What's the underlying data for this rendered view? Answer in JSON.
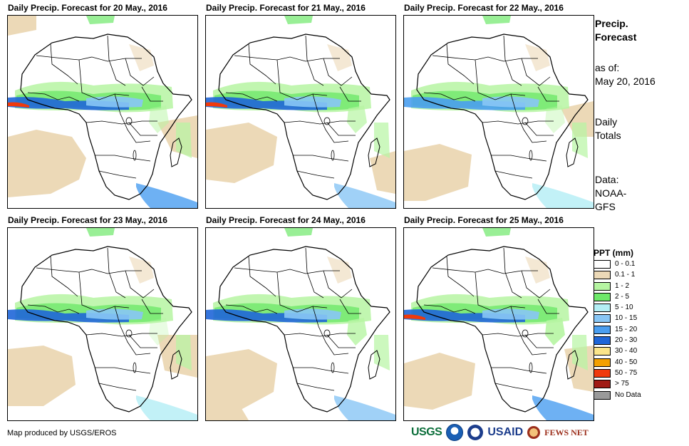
{
  "panels": [
    {
      "title": "Daily Precip. Forecast for 20 May., 2016"
    },
    {
      "title": "Daily Precip. Forecast for 21 May., 2016"
    },
    {
      "title": "Daily Precip. Forecast for 22 May., 2016"
    },
    {
      "title": "Daily Precip. Forecast for 23 May., 2016"
    },
    {
      "title": "Daily Precip. Forecast for 24 May., 2016"
    },
    {
      "title": "Daily Precip. Forecast for 25 May., 2016"
    }
  ],
  "side": {
    "title_line1": "Precip.",
    "title_line2": "Forecast",
    "asof_label": "as of:",
    "asof_date": "May 20, 2016",
    "totals_line1": "Daily",
    "totals_line2": "Totals",
    "data_line1": "Data:",
    "data_line2": "NOAA-",
    "data_line3": "GFS"
  },
  "legend": {
    "title": "PPT (mm)",
    "items": [
      {
        "label": "0 - 0.1",
        "color": "#ffffff"
      },
      {
        "label": "0.1 - 1",
        "color": "#ecd9b7"
      },
      {
        "label": "1 - 2",
        "color": "#b6f5a2"
      },
      {
        "label": "2 - 5",
        "color": "#6ee86a"
      },
      {
        "label": "5 - 10",
        "color": "#b3eef5"
      },
      {
        "label": "10 - 15",
        "color": "#88c6f5"
      },
      {
        "label": "15 - 20",
        "color": "#4a9ef0"
      },
      {
        "label": "20 - 30",
        "color": "#1f66d8"
      },
      {
        "label": "30 - 40",
        "color": "#fbe58a"
      },
      {
        "label": "40 - 50",
        "color": "#f4a000"
      },
      {
        "label": "50 - 75",
        "color": "#f03a0c"
      },
      {
        "label": "> 75",
        "color": "#a01a14"
      },
      {
        "label": "No Data",
        "color": "#9a9a9a"
      }
    ]
  },
  "footer": {
    "credit": "Map produced by USGS/EROS",
    "logos": {
      "usgs": "USGS",
      "usaid": "USAID",
      "fews": "FEWS NET"
    }
  },
  "colors": {
    "dry": "#ecd9b7",
    "light": "#b6f5a2",
    "moderate": "#6ee86a",
    "heavy": "#4a9ef0",
    "veryheavy": "#1f66d8",
    "extreme": "#f03a0c"
  }
}
